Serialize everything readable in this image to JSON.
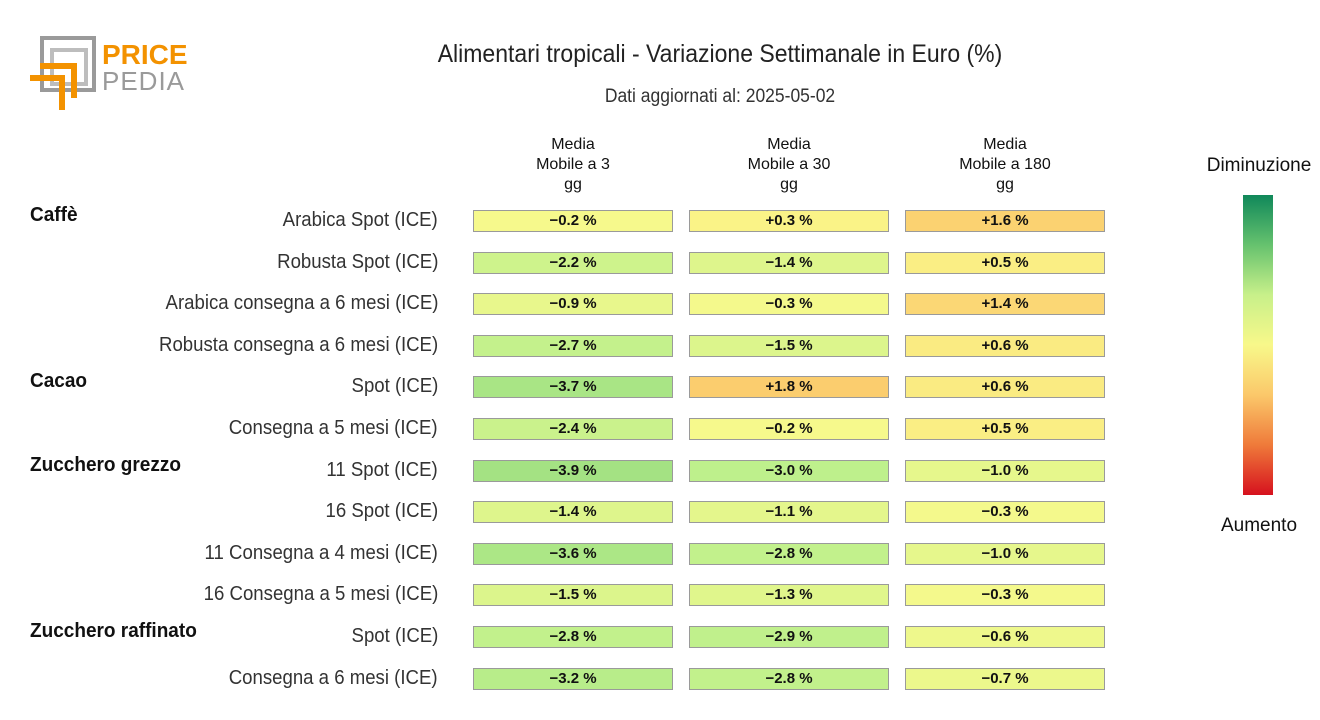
{
  "brand": {
    "line1": "PRICE",
    "line2": "PEDIA"
  },
  "title": "Alimentari tropicali - Variazione Settimanale in Euro (%)",
  "subtitle": "Dati aggiornati al: 2025-05-02",
  "columns": [
    "Media\nMobile a 3\ngg",
    "Media\nMobile a 30\ngg",
    "Media\nMobile a 180\ngg"
  ],
  "legend": {
    "top": "Diminuzione",
    "bottom": "Aumento",
    "colors": [
      "#10885a",
      "#66c26e",
      "#c8f08a",
      "#f8f88a",
      "#fbc86a",
      "#ef7a3a",
      "#d6111e"
    ]
  },
  "chart_data": {
    "type": "heatmap",
    "title": "Alimentari tropicali - Variazione Settimanale in Euro (%)",
    "columns": [
      "Media Mobile a 3 gg",
      "Media Mobile a 30 gg",
      "Media Mobile a 180 gg"
    ],
    "groups": [
      {
        "name": "Caffè",
        "rows": [
          {
            "label": "Arabica Spot (ICE)",
            "values": [
              -0.2,
              0.3,
              1.6
            ],
            "text": [
              "−0.2 %",
              "+0.3 %",
              "+1.6 %"
            ]
          },
          {
            "label": "Robusta Spot (ICE)",
            "values": [
              -2.2,
              -1.4,
              0.5
            ],
            "text": [
              "−2.2 %",
              "−1.4 %",
              "+0.5 %"
            ]
          },
          {
            "label": "Arabica consegna a 6 mesi (ICE)",
            "values": [
              -0.9,
              -0.3,
              1.4
            ],
            "text": [
              "−0.9 %",
              "−0.3 %",
              "+1.4 %"
            ]
          },
          {
            "label": "Robusta consegna a 6 mesi (ICE)",
            "values": [
              -2.7,
              -1.5,
              0.6
            ],
            "text": [
              "−2.7 %",
              "−1.5 %",
              "+0.6 %"
            ]
          }
        ]
      },
      {
        "name": "Cacao",
        "rows": [
          {
            "label": "Spot (ICE)",
            "values": [
              -3.7,
              1.8,
              0.6
            ],
            "text": [
              "−3.7 %",
              "+1.8 %",
              "+0.6 %"
            ]
          },
          {
            "label": "Consegna a 5 mesi (ICE)",
            "values": [
              -2.4,
              -0.2,
              0.5
            ],
            "text": [
              "−2.4 %",
              "−0.2 %",
              "+0.5 %"
            ]
          }
        ]
      },
      {
        "name": "Zucchero grezzo",
        "rows": [
          {
            "label": "11 Spot (ICE)",
            "values": [
              -3.9,
              -3.0,
              -1.0
            ],
            "text": [
              "−3.9 %",
              "−3.0 %",
              "−1.0 %"
            ]
          },
          {
            "label": "16 Spot (ICE)",
            "values": [
              -1.4,
              -1.1,
              -0.3
            ],
            "text": [
              "−1.4 %",
              "−1.1 %",
              "−0.3 %"
            ]
          },
          {
            "label": "11 Consegna a 4 mesi (ICE)",
            "values": [
              -3.6,
              -2.8,
              -1.0
            ],
            "text": [
              "−3.6 %",
              "−2.8 %",
              "−1.0 %"
            ]
          },
          {
            "label": "16 Consegna a 5 mesi (ICE)",
            "values": [
              -1.5,
              -1.3,
              -0.3
            ],
            "text": [
              "−1.5 %",
              "−1.3 %",
              "−0.3 %"
            ]
          }
        ]
      },
      {
        "name": "Zucchero raffinato",
        "rows": [
          {
            "label": "Spot (ICE)",
            "values": [
              -2.8,
              -2.9,
              -0.6
            ],
            "text": [
              "−2.8 %",
              "−2.9 %",
              "−0.6 %"
            ]
          },
          {
            "label": "Consegna a 6 mesi (ICE)",
            "values": [
              -3.2,
              -2.8,
              -0.7
            ],
            "text": [
              "−3.2 %",
              "−2.8 %",
              "−0.7 %"
            ]
          }
        ]
      }
    ]
  }
}
